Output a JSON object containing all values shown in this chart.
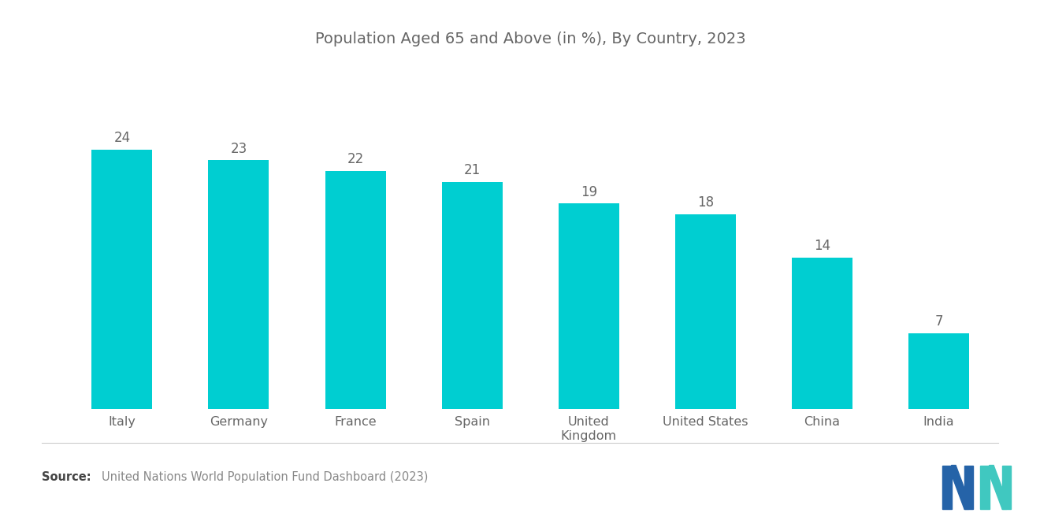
{
  "title": "Population Aged 65 and Above (in %), By Country, 2023",
  "categories": [
    "Italy",
    "Germany",
    "France",
    "Spain",
    "United\nKingdom",
    "United States",
    "China",
    "India"
  ],
  "values": [
    24,
    23,
    22,
    21,
    19,
    18,
    14,
    7
  ],
  "bar_color": "#00CED1",
  "background_color": "#ffffff",
  "title_color": "#666666",
  "label_color": "#666666",
  "value_color": "#666666",
  "source_bold": "Source:",
  "source_text": "United Nations World Population Fund Dashboard (2023)",
  "title_fontsize": 14,
  "value_fontsize": 12,
  "category_fontsize": 11.5,
  "source_fontsize": 10.5,
  "ylim": [
    0,
    32
  ]
}
